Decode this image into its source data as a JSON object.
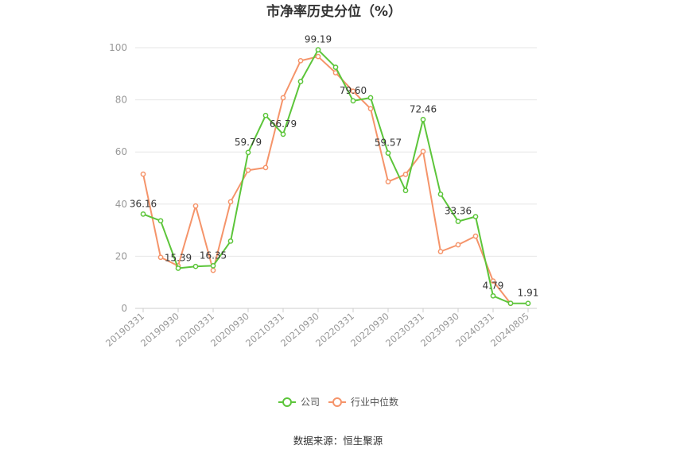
{
  "chart_data": {
    "type": "line",
    "title": "市净率历史分位（%）",
    "source": "数据来源：恒生聚源",
    "ylim": [
      0,
      100
    ],
    "yticks": [
      0,
      20,
      40,
      60,
      80,
      100
    ],
    "x_tick_labels": [
      "20190331",
      "20190930",
      "20200331",
      "20200930",
      "20210331",
      "20210930",
      "20220331",
      "20220930",
      "20230331",
      "20230930",
      "20240331",
      "20240805"
    ],
    "x": [
      "20190331",
      "20190630",
      "20190930",
      "20191231",
      "20200331",
      "20200630",
      "20200930",
      "20201231",
      "20210331",
      "20210630",
      "20210930",
      "20211231",
      "20220331",
      "20220630",
      "20220930",
      "20221231",
      "20230331",
      "20230630",
      "20230930",
      "20231231",
      "20240331",
      "20240630",
      "20240805"
    ],
    "series": [
      {
        "name": "公司",
        "color": "#5cc53a",
        "values": [
          36.16,
          33.6,
          15.39,
          16.1,
          16.35,
          25.8,
          59.79,
          74.0,
          66.79,
          87.0,
          99.19,
          92.5,
          79.6,
          80.8,
          59.57,
          45.2,
          72.46,
          43.8,
          33.36,
          35.2,
          4.79,
          1.95,
          1.91
        ],
        "labels": {
          "0": "36.16",
          "2": "15.39",
          "4": "16.35",
          "6": "59.79",
          "8": "66.79",
          "10": "99.19",
          "12": "79.60",
          "14": "59.57",
          "16": "72.46",
          "18": "33.36",
          "20": "4.79",
          "22": "1.91"
        }
      },
      {
        "name": "行业中位数",
        "color": "#f5946a",
        "values": [
          51.5,
          19.6,
          16.3,
          39.3,
          14.6,
          40.9,
          53.0,
          54.0,
          80.8,
          95.0,
          96.6,
          90.4,
          83.3,
          76.6,
          48.6,
          51.4,
          60.2,
          21.8,
          24.4,
          27.7,
          10.5,
          1.9,
          null
        ]
      }
    ],
    "legend": {
      "position": "bottom-center"
    },
    "grid": true
  }
}
